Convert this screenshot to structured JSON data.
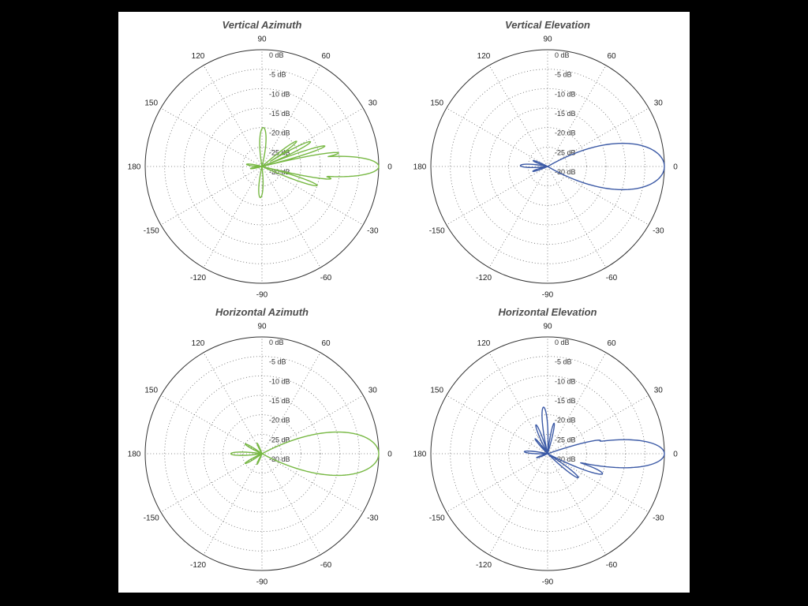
{
  "frame": {
    "background": "#000000"
  },
  "panel": {
    "background": "#ffffff"
  },
  "colors": {
    "green_series": "#77b843",
    "blue_series": "#3c5aa6",
    "grid": "#666666",
    "title_text": "#4d4d4d"
  },
  "chart_data": [
    {
      "type": "polar",
      "title": "Vertical Azimuth",
      "color": "#77b843",
      "grid": true,
      "r_range_db": [
        -30,
        0
      ],
      "angle_ticks_deg": [
        0,
        30,
        60,
        90,
        120,
        150,
        180,
        -150,
        -120,
        -90,
        -60,
        -30
      ],
      "radial_ticks": [
        {
          "label": "0 dB",
          "db": 0
        },
        {
          "label": "-5 dB",
          "db": -5
        },
        {
          "label": "-10 dB",
          "db": -10
        },
        {
          "label": "-15 dB",
          "db": -15
        },
        {
          "label": "-20 dB",
          "db": -20
        },
        {
          "label": "-25 dB",
          "db": -25
        },
        {
          "label": "-30 dB",
          "db": -30
        }
      ],
      "lobes": [
        {
          "angle_deg": 0,
          "peak_db": 0,
          "width_deg": 13
        },
        {
          "angle_deg": 10,
          "peak_db": -10,
          "width_deg": 4
        },
        {
          "angle_deg": 18,
          "peak_db": -13,
          "width_deg": 4
        },
        {
          "angle_deg": 27,
          "peak_db": -16,
          "width_deg": 5
        },
        {
          "angle_deg": 36,
          "peak_db": -19,
          "width_deg": 5
        },
        {
          "angle_deg": -10,
          "peak_db": -12,
          "width_deg": 4
        },
        {
          "angle_deg": -19,
          "peak_db": -15,
          "width_deg": 5
        },
        {
          "angle_deg": 88,
          "peak_db": -20,
          "width_deg": 12
        },
        {
          "angle_deg": -93,
          "peak_db": -22,
          "width_deg": 10
        },
        {
          "angle_deg": 172,
          "peak_db": -26,
          "width_deg": 7
        },
        {
          "angle_deg": -170,
          "peak_db": -27,
          "width_deg": 6
        }
      ]
    },
    {
      "type": "polar",
      "title": "Vertical Elevation",
      "color": "#3c5aa6",
      "grid": true,
      "r_range_db": [
        -30,
        0
      ],
      "angle_ticks_deg": [
        0,
        30,
        60,
        90,
        120,
        150,
        180,
        -150,
        -120,
        -90,
        -60,
        -30
      ],
      "radial_ticks": [
        {
          "label": "0 dB",
          "db": 0
        },
        {
          "label": "-5 dB",
          "db": -5
        },
        {
          "label": "-10 dB",
          "db": -10
        },
        {
          "label": "-15 dB",
          "db": -15
        },
        {
          "label": "-20 dB",
          "db": -20
        },
        {
          "label": "-25 dB",
          "db": -25
        },
        {
          "label": "-30 dB",
          "db": -30
        }
      ],
      "lobes": [
        {
          "angle_deg": 0,
          "peak_db": 0,
          "width_deg": 30
        },
        {
          "angle_deg": 178,
          "peak_db": -23,
          "width_deg": 9
        },
        {
          "angle_deg": 158,
          "peak_db": -26,
          "width_deg": 6
        },
        {
          "angle_deg": -162,
          "peak_db": -26,
          "width_deg": 6
        }
      ]
    },
    {
      "type": "polar",
      "title": "Horizontal Azimuth",
      "color": "#77b843",
      "grid": true,
      "r_range_db": [
        -30,
        0
      ],
      "angle_ticks_deg": [
        0,
        30,
        60,
        90,
        120,
        150,
        180,
        -150,
        -120,
        -90,
        -60,
        -30
      ],
      "radial_ticks": [
        {
          "label": "0 dB",
          "db": 0
        },
        {
          "label": "-5 dB",
          "db": -5
        },
        {
          "label": "-10 dB",
          "db": -10
        },
        {
          "label": "-15 dB",
          "db": -15
        },
        {
          "label": "-20 dB",
          "db": -20
        },
        {
          "label": "-25 dB",
          "db": -25
        },
        {
          "label": "-30 dB",
          "db": -30
        }
      ],
      "lobes": [
        {
          "angle_deg": 0,
          "peak_db": 0,
          "width_deg": 28
        },
        {
          "angle_deg": 180,
          "peak_db": -22,
          "width_deg": 8
        },
        {
          "angle_deg": 150,
          "peak_db": -25,
          "width_deg": 6
        },
        {
          "angle_deg": -150,
          "peak_db": -25,
          "width_deg": 6
        },
        {
          "angle_deg": 115,
          "peak_db": -27,
          "width_deg": 5
        },
        {
          "angle_deg": -115,
          "peak_db": -27,
          "width_deg": 5
        }
      ]
    },
    {
      "type": "polar",
      "title": "Horizontal Elevation",
      "color": "#3c5aa6",
      "grid": true,
      "r_range_db": [
        -30,
        0
      ],
      "angle_ticks_deg": [
        0,
        30,
        60,
        90,
        120,
        150,
        180,
        -150,
        -120,
        -90,
        -60,
        -30
      ],
      "radial_ticks": [
        {
          "label": "0 dB",
          "db": 0
        },
        {
          "label": "-5 dB",
          "db": -5
        },
        {
          "label": "-10 dB",
          "db": -10
        },
        {
          "label": "-15 dB",
          "db": -15
        },
        {
          "label": "-20 dB",
          "db": -20
        },
        {
          "label": "-25 dB",
          "db": -25
        },
        {
          "label": "-30 dB",
          "db": -30
        }
      ],
      "lobes": [
        {
          "angle_deg": 0,
          "peak_db": 0,
          "width_deg": 18
        },
        {
          "angle_deg": 14,
          "peak_db": -16,
          "width_deg": 5
        },
        {
          "angle_deg": -20,
          "peak_db": -15,
          "width_deg": 7
        },
        {
          "angle_deg": -38,
          "peak_db": -20,
          "width_deg": 6
        },
        {
          "angle_deg": 95,
          "peak_db": -18,
          "width_deg": 8
        },
        {
          "angle_deg": 112,
          "peak_db": -22,
          "width_deg": 6
        },
        {
          "angle_deg": 78,
          "peak_db": -22,
          "width_deg": 5
        },
        {
          "angle_deg": 130,
          "peak_db": -25,
          "width_deg": 5
        },
        {
          "angle_deg": 175,
          "peak_db": -24,
          "width_deg": 7
        },
        {
          "angle_deg": -160,
          "peak_db": -27,
          "width_deg": 5
        }
      ]
    }
  ]
}
